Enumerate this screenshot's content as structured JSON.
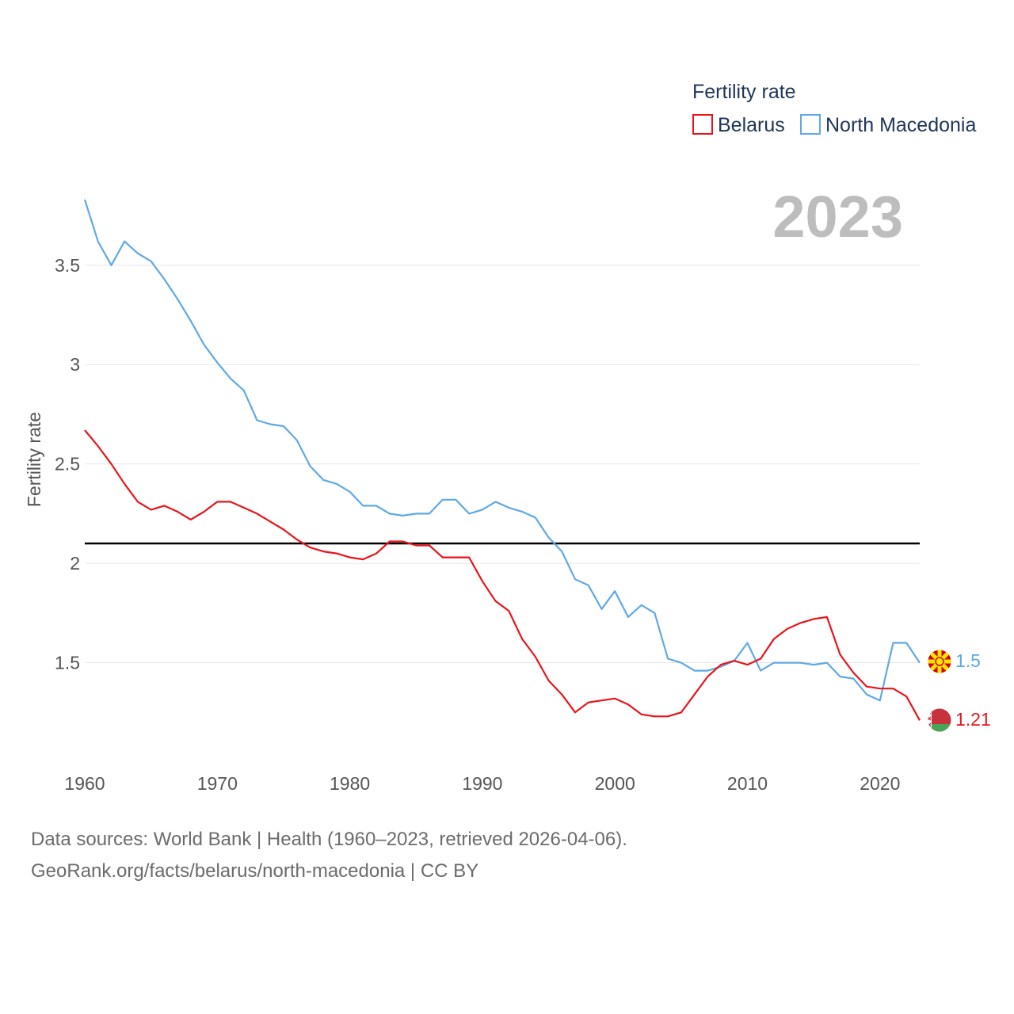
{
  "colors": {
    "belarus": "#e8141a",
    "north_macedonia": "#5ea9e6",
    "reference": "#000000",
    "year": "#bdbdbd"
  },
  "current_year": "2023",
  "footer": {
    "line1": "Data sources: World Bank | Health (1960–2023, retrieved 2026-04-06).",
    "line2": "GeoRank.org/facts/belarus/north-macedonia | CC BY"
  },
  "chart_data": {
    "type": "line",
    "title": "",
    "legend_title": "Fertility rate",
    "legend_position": "top-right",
    "xlabel": "",
    "ylabel": "Fertility rate",
    "xlim": [
      1960,
      2023
    ],
    "ylim": [
      1.0,
      3.85
    ],
    "x_ticks": [
      1960,
      1970,
      1980,
      1990,
      2000,
      2010,
      2020
    ],
    "x_tick_labels": [
      "1960",
      "1970",
      "1980",
      "1990",
      "2000",
      "2010",
      "2020"
    ],
    "y_ticks": [
      1.5,
      2,
      2.5,
      3,
      3.5
    ],
    "y_tick_labels": [
      "1.5",
      "2",
      "2.5",
      "3",
      "3.5"
    ],
    "grid": true,
    "reference_line": {
      "y": 2.1
    },
    "x": [
      1960,
      1961,
      1962,
      1963,
      1964,
      1965,
      1966,
      1967,
      1968,
      1969,
      1970,
      1971,
      1972,
      1973,
      1974,
      1975,
      1976,
      1977,
      1978,
      1979,
      1980,
      1981,
      1982,
      1983,
      1984,
      1985,
      1986,
      1987,
      1988,
      1989,
      1990,
      1991,
      1992,
      1993,
      1994,
      1995,
      1996,
      1997,
      1998,
      1999,
      2000,
      2001,
      2002,
      2003,
      2004,
      2005,
      2006,
      2007,
      2008,
      2009,
      2010,
      2011,
      2012,
      2013,
      2014,
      2015,
      2016,
      2017,
      2018,
      2019,
      2020,
      2021,
      2022,
      2023
    ],
    "series": [
      {
        "name": "Belarus",
        "end_label": "1.21",
        "values": [
          2.67,
          2.59,
          2.5,
          2.4,
          2.31,
          2.27,
          2.29,
          2.26,
          2.22,
          2.26,
          2.31,
          2.31,
          2.28,
          2.25,
          2.21,
          2.17,
          2.12,
          2.08,
          2.06,
          2.05,
          2.03,
          2.02,
          2.05,
          2.11,
          2.11,
          2.09,
          2.09,
          2.03,
          2.03,
          2.03,
          1.91,
          1.81,
          1.76,
          1.62,
          1.53,
          1.41,
          1.34,
          1.25,
          1.3,
          1.31,
          1.32,
          1.29,
          1.24,
          1.23,
          1.23,
          1.25,
          1.34,
          1.43,
          1.49,
          1.51,
          1.49,
          1.52,
          1.62,
          1.67,
          1.7,
          1.72,
          1.73,
          1.54,
          1.45,
          1.38,
          1.37,
          1.37,
          1.33,
          1.21
        ]
      },
      {
        "name": "North Macedonia",
        "end_label": "1.5",
        "values": [
          3.83,
          3.62,
          3.5,
          3.62,
          3.56,
          3.52,
          3.43,
          3.33,
          3.22,
          3.1,
          3.01,
          2.93,
          2.87,
          2.72,
          2.7,
          2.69,
          2.62,
          2.49,
          2.42,
          2.4,
          2.36,
          2.29,
          2.29,
          2.25,
          2.24,
          2.25,
          2.25,
          2.32,
          2.32,
          2.25,
          2.27,
          2.31,
          2.28,
          2.26,
          2.23,
          2.13,
          2.06,
          1.92,
          1.89,
          1.77,
          1.86,
          1.73,
          1.79,
          1.75,
          1.52,
          1.5,
          1.46,
          1.46,
          1.48,
          1.51,
          1.6,
          1.46,
          1.5,
          1.5,
          1.5,
          1.49,
          1.5,
          1.43,
          1.42,
          1.34,
          1.31,
          1.6,
          1.6,
          1.5
        ]
      }
    ]
  }
}
